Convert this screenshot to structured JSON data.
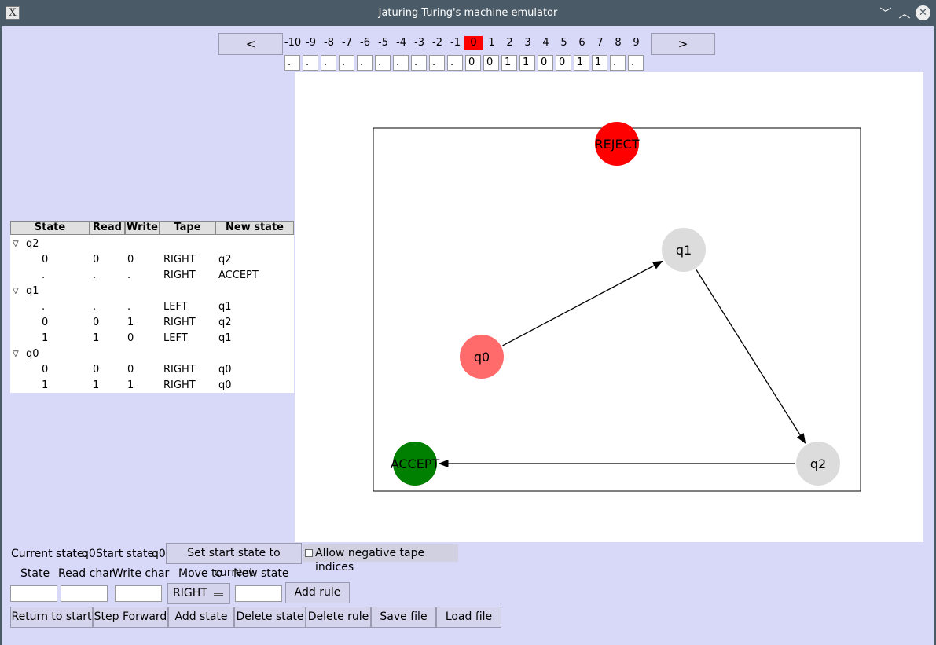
{
  "window": {
    "title": "Jaturing Turing's machine emulator",
    "buttons": {
      "minimize": "﹀",
      "maximize": "︿",
      "close": "✕"
    }
  },
  "tape": {
    "prev_label": "<",
    "next_label": ">",
    "indices": [
      "-10",
      "-9",
      "-8",
      "-7",
      "-6",
      "-5",
      "-4",
      "-3",
      "-2",
      "-1",
      "0",
      "1",
      "2",
      "3",
      "4",
      "5",
      "6",
      "7",
      "8",
      "9"
    ],
    "current_index": "0",
    "cells": [
      ".",
      ".",
      ".",
      ".",
      ".",
      ".",
      ".",
      ".",
      ".",
      ".",
      "0",
      "0",
      "1",
      "1",
      "0",
      "0",
      "1",
      "1",
      ".",
      "."
    ]
  },
  "rules_table": {
    "columns": [
      "State",
      "Read",
      "Write",
      "Tape",
      "New state"
    ],
    "groups": [
      {
        "state": "q2",
        "rules": [
          {
            "state": "0",
            "read": "0",
            "write": "0",
            "tape": "RIGHT",
            "new_state": "q2"
          },
          {
            "state": ".",
            "read": ".",
            "write": ".",
            "tape": "RIGHT",
            "new_state": "ACCEPT"
          }
        ]
      },
      {
        "state": "q1",
        "rules": [
          {
            "state": ".",
            "read": ".",
            "write": ".",
            "tape": "LEFT",
            "new_state": "q1"
          },
          {
            "state": "0",
            "read": "0",
            "write": "1",
            "tape": "RIGHT",
            "new_state": "q2"
          },
          {
            "state": "1",
            "read": "1",
            "write": "0",
            "tape": "LEFT",
            "new_state": "q1"
          }
        ]
      },
      {
        "state": "q0",
        "rules": [
          {
            "state": "0",
            "read": "0",
            "write": "0",
            "tape": "RIGHT",
            "new_state": "q0"
          },
          {
            "state": "1",
            "read": "1",
            "write": "1",
            "tape": "RIGHT",
            "new_state": "q0"
          }
        ]
      }
    ]
  },
  "graph": {
    "nodes": [
      {
        "id": "REJECT",
        "label": "REJECT",
        "color": "#ff0000"
      },
      {
        "id": "q1",
        "label": "q1",
        "color": "#dcdcdc"
      },
      {
        "id": "q0",
        "label": "q0",
        "color": "#ff6b6b"
      },
      {
        "id": "ACCEPT",
        "label": "ACCEPT",
        "color": "#008000"
      },
      {
        "id": "q2",
        "label": "q2",
        "color": "#dcdcdc"
      }
    ],
    "edges": [
      {
        "from": "q0",
        "to": "q1"
      },
      {
        "from": "q1",
        "to": "q2"
      },
      {
        "from": "q2",
        "to": "ACCEPT"
      }
    ]
  },
  "status": {
    "current_state_label": "Current state:",
    "current_state_value": "q0",
    "start_state_label": "Start state:",
    "start_state_value": "q0",
    "set_start_button": "Set start state to current",
    "allow_negative_label": "Allow negative tape indices",
    "allow_negative_checked": false
  },
  "rule_form": {
    "state_label": "State",
    "read_label": "Read char",
    "write_label": "Write char",
    "move_label": "Move to",
    "new_state_label": "New state",
    "move_value": "RIGHT",
    "state_value": "",
    "read_value": "",
    "write_value": "",
    "new_state_value": "",
    "add_rule_button": "Add rule"
  },
  "actions": {
    "return_to_start": "Return to start",
    "step_forward": "Step Forward",
    "add_state": "Add state",
    "delete_state": "Delete state",
    "delete_rule": "Delete rule",
    "save_file": "Save file",
    "load_file": "Load file"
  },
  "colors": {
    "window_bg": "#d8d8f8",
    "titlebar": "#4a5a66",
    "current_tape_cell": "#ff0000"
  }
}
